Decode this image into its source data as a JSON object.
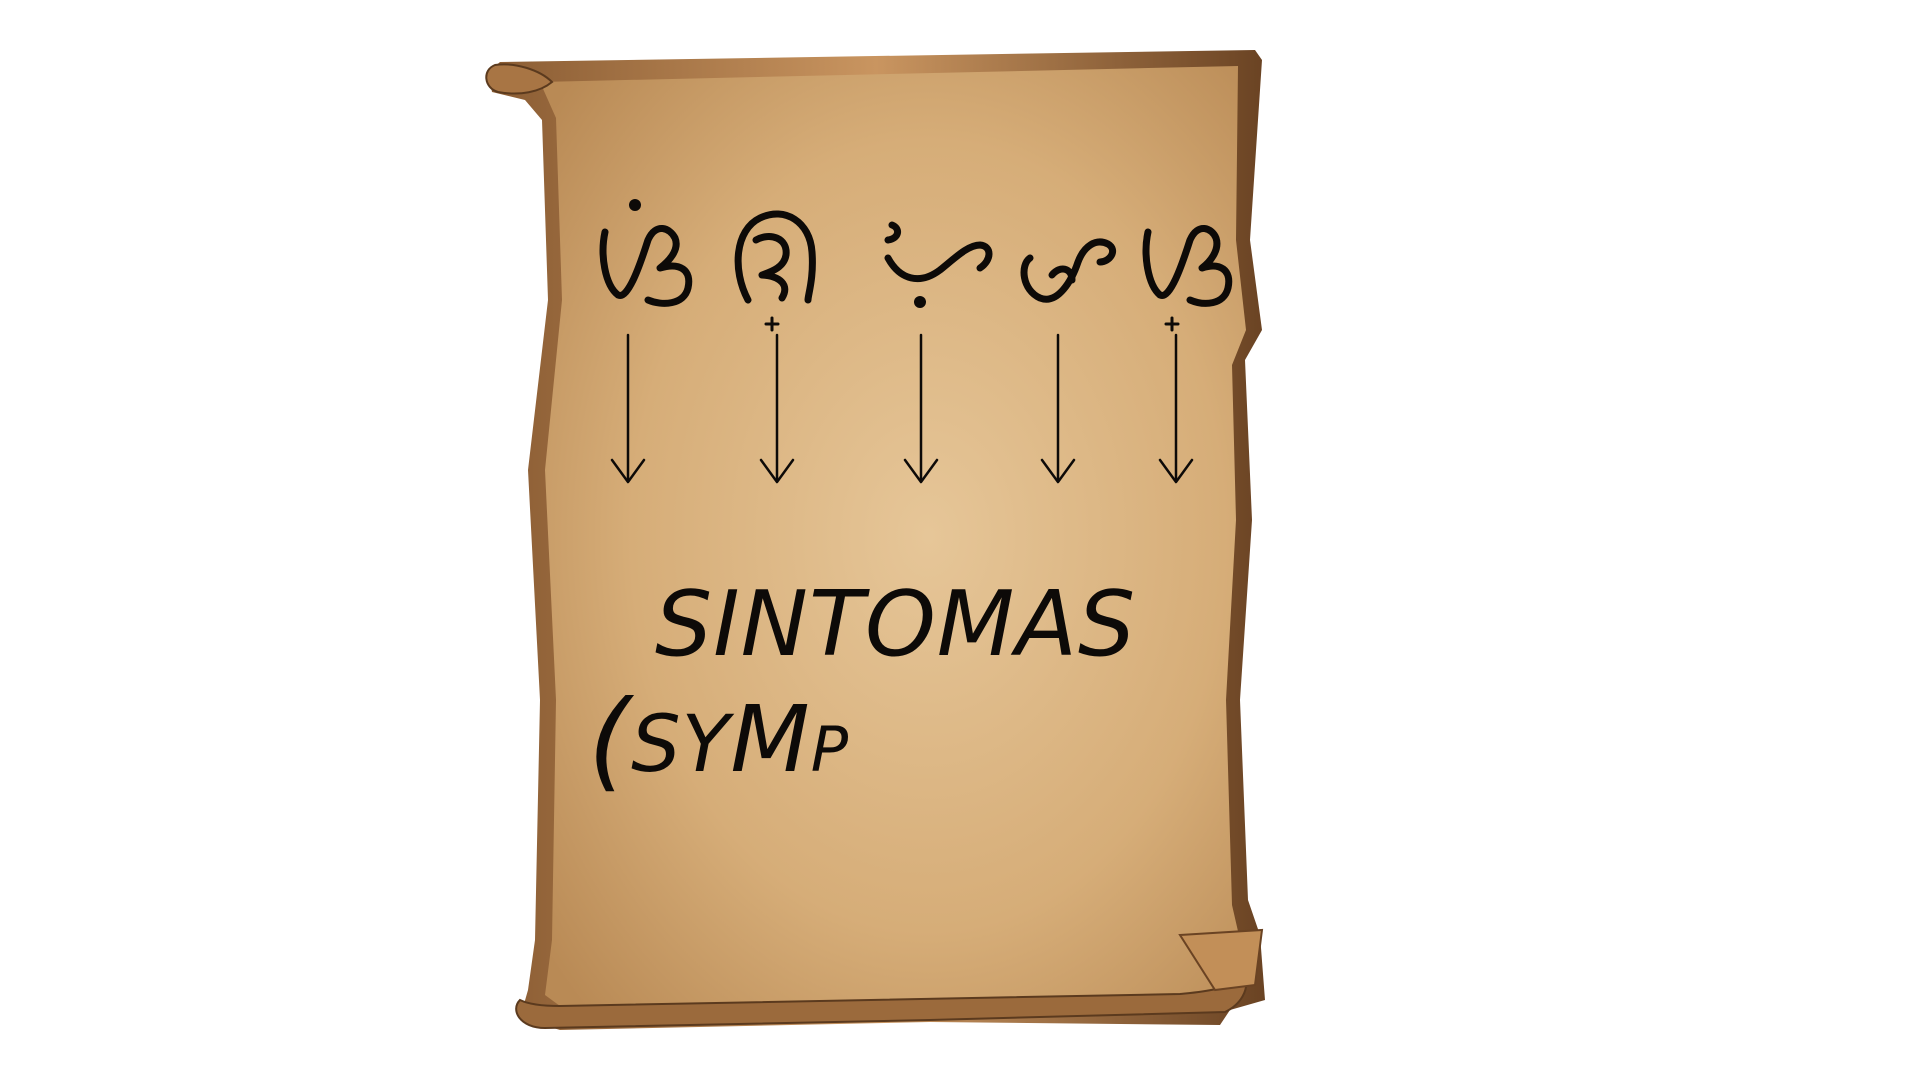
{
  "scroll": {
    "colors": {
      "paper_light": "#e6c698",
      "paper_mid": "#d6ad78",
      "paper_dark": "#b98a55",
      "edge_brown": "#6a4323",
      "ink": "#0d0a08"
    }
  },
  "script_glyphs": [
    {
      "name": "baybayin-glyph-1",
      "icon": "baybayin-glyph"
    },
    {
      "name": "baybayin-glyph-2",
      "icon": "baybayin-glyph"
    },
    {
      "name": "baybayin-glyph-3",
      "icon": "baybayin-glyph"
    },
    {
      "name": "baybayin-glyph-4",
      "icon": "baybayin-glyph"
    },
    {
      "name": "baybayin-glyph-5",
      "icon": "baybayin-glyph"
    }
  ],
  "arrows": {
    "count": 5,
    "icon": "arrow-down-icon"
  },
  "text": {
    "main_word": "SINTOMAS",
    "partial_paren": "(",
    "partial_s": "S",
    "partial_y": "Y",
    "partial_m": "M",
    "partial_p": "P"
  }
}
